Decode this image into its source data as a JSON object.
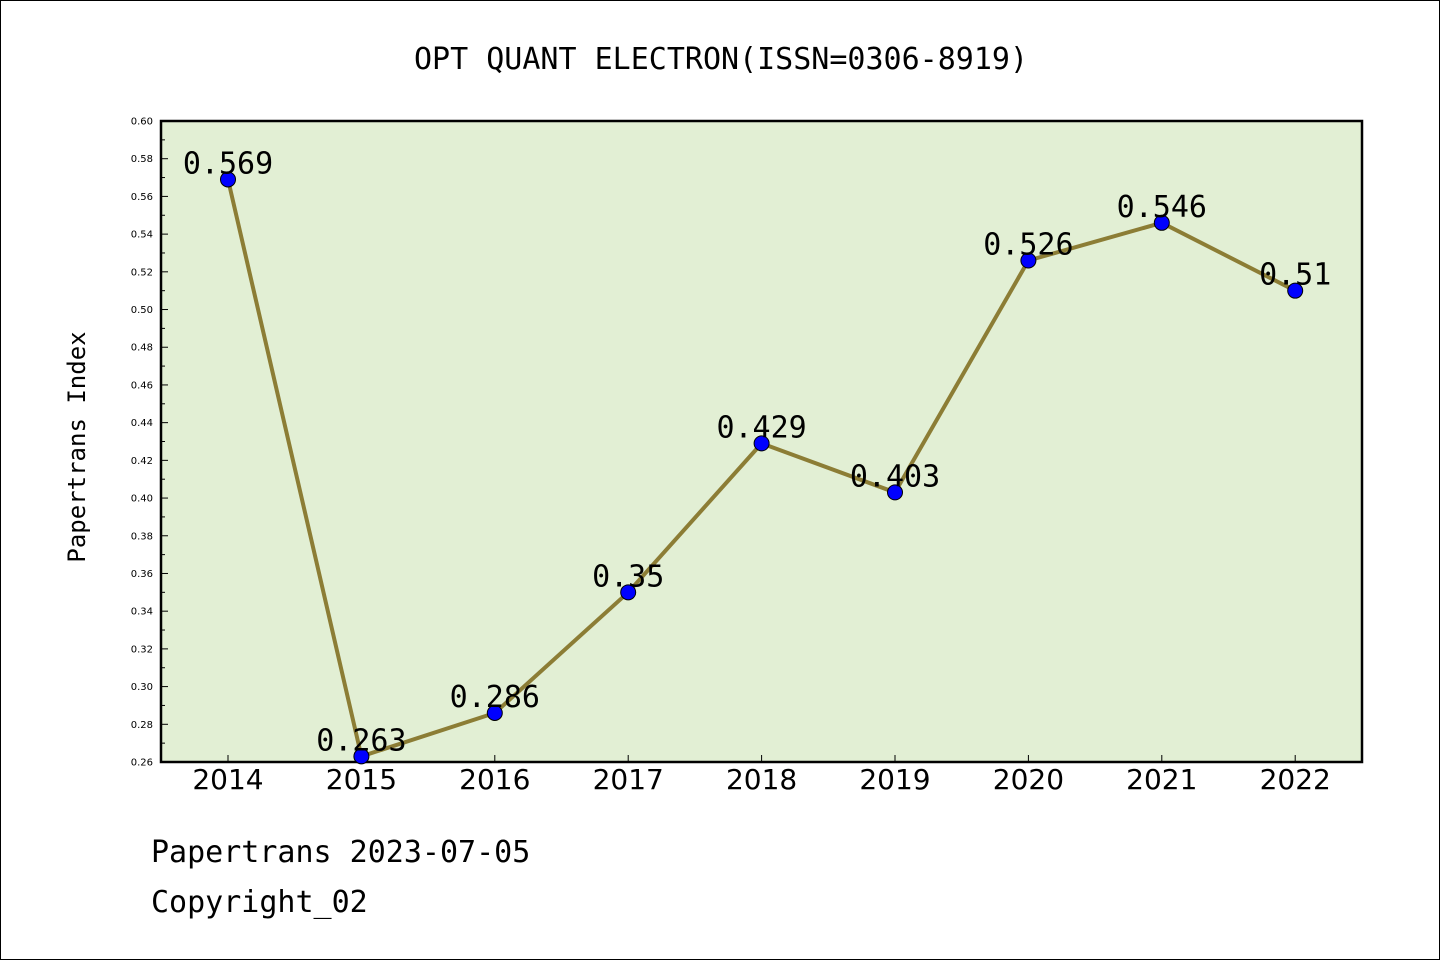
{
  "chart_data": {
    "type": "line",
    "title": "OPT QUANT ELECTRON(ISSN=0306-8919)",
    "xlabel": "",
    "ylabel": "Papertrans Index",
    "categories": [
      "2014",
      "2015",
      "2016",
      "2017",
      "2018",
      "2019",
      "2020",
      "2021",
      "2022"
    ],
    "series": [
      {
        "values": [
          0.569,
          0.263,
          0.286,
          0.35,
          0.429,
          0.403,
          0.526,
          0.546,
          0.51
        ],
        "labels": [
          "0.569",
          "0.263",
          "0.286",
          "0.35",
          "0.429",
          "0.403",
          "0.526",
          "0.546",
          "0.51"
        ]
      }
    ],
    "ylim": [
      0.26,
      0.6
    ],
    "yticks": [
      "0.26",
      "0.28",
      "0.30",
      "0.32",
      "0.34",
      "0.36",
      "0.38",
      "0.40",
      "0.42",
      "0.44",
      "0.46",
      "0.48",
      "0.50",
      "0.52",
      "0.54",
      "0.56",
      "0.58",
      "0.60"
    ],
    "grid": false,
    "legend": "none",
    "colors": {
      "plot_background": "#e2efd4",
      "line": "#8c7d35",
      "marker": "#0000ff"
    }
  },
  "footer": {
    "date_line": "Papertrans 2023-07-05",
    "copyright": "Copyright_02"
  }
}
